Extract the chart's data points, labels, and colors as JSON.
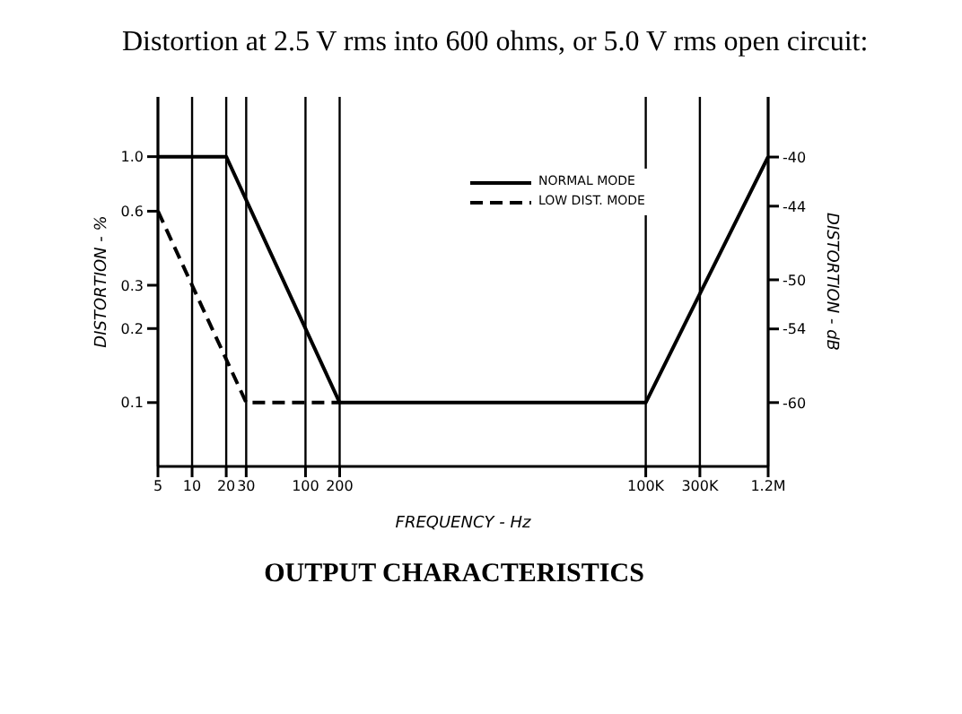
{
  "chart_data": {
    "type": "line",
    "title": "Distortion at 2.5 V rms into 600 ohms, or 5.0 V rms open circuit:",
    "xlabel": "FREQUENCY - Hz",
    "ylabel": "DISTORTION - %",
    "y2label": "DISTORTION - dB",
    "annotations": [
      "OUTPUT CHARACTERISTICS"
    ],
    "log": "xy",
    "grid": true,
    "legend": "top right",
    "marker": "none",
    "xlim": [
      5,
      1200000
    ],
    "xticks": [
      5,
      10,
      20,
      30,
      100,
      200,
      {
        "value": 100000,
        "label": "100K"
      },
      {
        "value": 300000,
        "label": "300K"
      },
      {
        "value": 1200000,
        "label": "1.2M"
      }
    ],
    "ylim": [
      0.055,
      1.75
    ],
    "yticks": [
      0.1,
      0.2,
      0.3,
      0.6,
      {
        "value": 1,
        "label": "1.0"
      }
    ],
    "y2lim": [
      -65.2,
      -35.1
    ],
    "y2ticks": [
      -40,
      -44,
      -50,
      -54,
      -60
    ],
    "series": [
      {
        "name": "NORMAL MODE",
        "color": "#000000",
        "line_style": "solid",
        "x": [
          5,
          20,
          200,
          100000,
          1200000
        ],
        "values": [
          1,
          1,
          0.1,
          0.1,
          1
        ]
      },
      {
        "name": "LOW DIST. MODE",
        "color": "#000000",
        "line_style": "dashed",
        "x": [
          5,
          30,
          200
        ],
        "values": [
          0.6,
          0.1,
          0.1
        ]
      }
    ]
  }
}
